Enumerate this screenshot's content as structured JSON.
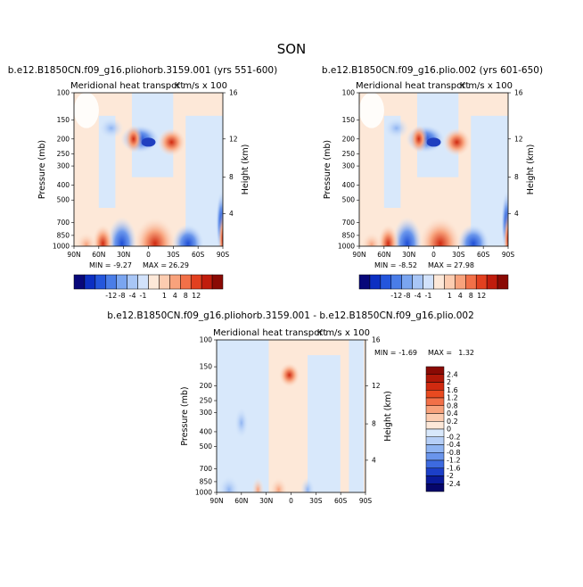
{
  "page": {
    "title": "SON"
  },
  "colors": {
    "frame": "#000000",
    "neutral": "#fde8d8",
    "sky": "#d8e8fb"
  },
  "chart_data": [
    {
      "type": "heatmap",
      "id": "panel-a",
      "title": "b.e12.B1850CN.f09_g16.pliohorb.3159.001 (yrs 551-600)",
      "subtitle": "Meridional heat transport",
      "units": "K m/s x 100",
      "xlabel": "",
      "ylabel": "Pressure (mb)",
      "y2label": "Height (km)",
      "x_ticks": [
        "90N",
        "60N",
        "30N",
        "0",
        "30S",
        "60S",
        "90S"
      ],
      "y_ticks": [
        "100",
        "150",
        "200",
        "250",
        "300",
        "400",
        "500",
        "700",
        "850",
        "1000"
      ],
      "y2_ticks": [
        "16",
        "12",
        "8",
        "4"
      ],
      "xlim": [
        90,
        -90
      ],
      "ylim": [
        1000,
        100
      ],
      "min_label": "MIN =",
      "min_value": "-9.27",
      "max_label": "MAX =",
      "max_value": "26.29"
    },
    {
      "type": "heatmap",
      "id": "panel-b",
      "title": "b.e12.B1850CN.f09_g16.plio.002 (yrs 601-650)",
      "subtitle": "Meridional heat transport",
      "units": "K m/s x 100",
      "xlabel": "",
      "ylabel": "Pressure (mb)",
      "y2label": "Height (km)",
      "x_ticks": [
        "90N",
        "60N",
        "30N",
        "0",
        "30S",
        "60S",
        "90S"
      ],
      "y_ticks": [
        "100",
        "150",
        "200",
        "250",
        "300",
        "400",
        "500",
        "700",
        "850",
        "1000"
      ],
      "y2_ticks": [
        "16",
        "12",
        "8",
        "4"
      ],
      "xlim": [
        90,
        -90
      ],
      "ylim": [
        1000,
        100
      ],
      "min_label": "MIN =",
      "min_value": "-8.52",
      "max_label": "MAX =",
      "max_value": "27.98"
    },
    {
      "type": "heatmap",
      "id": "panel-c",
      "title": "b.e12.B1850CN.f09_g16.pliohorb.3159.001 - b.e12.B1850CN.f09_g16.plio.002",
      "subtitle": "Meridional heat transport",
      "units": "K m/s x 100",
      "xlabel": "",
      "ylabel": "Pressure (mb)",
      "y2label": "Height (km)",
      "x_ticks": [
        "90N",
        "60N",
        "30N",
        "0",
        "30S",
        "60S",
        "90S"
      ],
      "y_ticks": [
        "100",
        "150",
        "200",
        "250",
        "300",
        "400",
        "500",
        "700",
        "850",
        "1000"
      ],
      "y2_ticks": [
        "16",
        "12",
        "8",
        "4"
      ],
      "xlim": [
        90,
        -90
      ],
      "ylim": [
        1000,
        100
      ],
      "min_label": "MIN =",
      "min_value": "-1.69",
      "max_label": "MAX =",
      "max_value": "1.32"
    }
  ],
  "colorbar_main": {
    "labels": [
      "-12",
      "-8",
      "-4",
      "-1",
      "1",
      "4",
      "8",
      "12"
    ],
    "colors": [
      "#08087a",
      "#0c2fc2",
      "#2456dc",
      "#4a7de8",
      "#7aa5f0",
      "#a8c6f6",
      "#d2e2fb",
      "#fde8d8",
      "#fcccb0",
      "#f8a27c",
      "#f27048",
      "#e2401f",
      "#c01c0c",
      "#8a0a04"
    ]
  },
  "colorbar_diff": {
    "labels": [
      "2.4",
      "2",
      "1.6",
      "1.2",
      "0.8",
      "0.4",
      "0.2",
      "0",
      "-0.2",
      "-0.4",
      "-0.8",
      "-1.2",
      "-1.6",
      "-2",
      "-2.4"
    ],
    "colors": [
      "#8a0a04",
      "#b01808",
      "#d02a10",
      "#e84a20",
      "#f27048",
      "#f8a27c",
      "#fcccb0",
      "#fde8d8",
      "#d8e8fb",
      "#b6cff7",
      "#8fb4f2",
      "#6a95ec",
      "#3d6ae0",
      "#1c3fc8",
      "#0a1a9a",
      "#06066a"
    ]
  }
}
